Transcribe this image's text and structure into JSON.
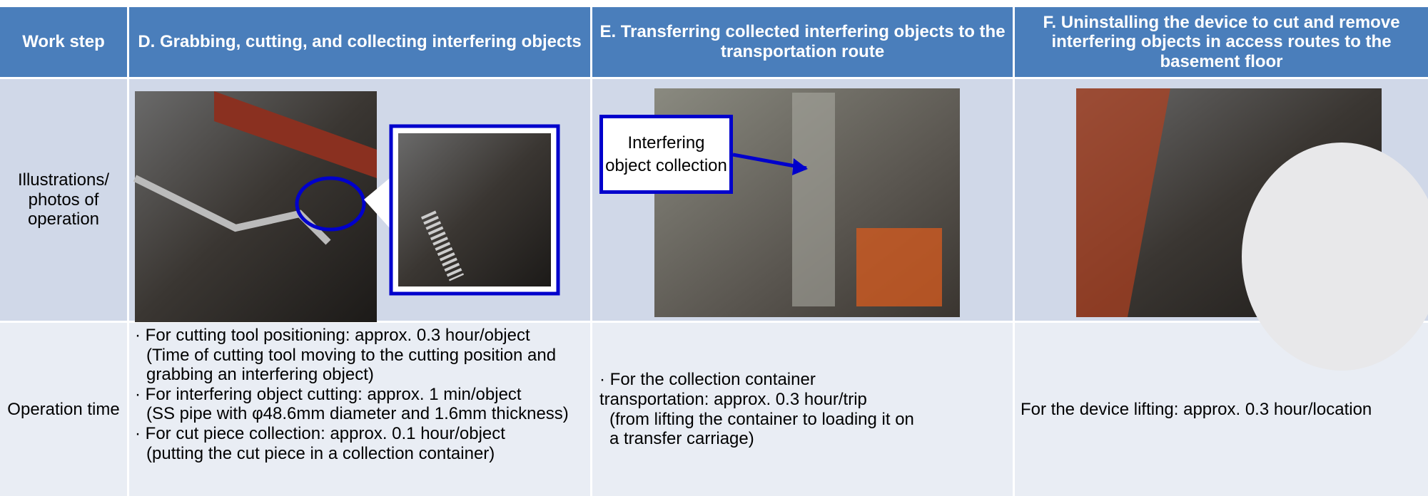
{
  "table": {
    "header": [
      "Work step",
      "D. Grabbing, cutting, and collecting interfering objects",
      "E. Transferring collected interfering objects to the transportation route",
      "F. Uninstalling the device to cut and remove interfering objects in access routes to the basement floor"
    ],
    "rows": [
      {
        "label": "Illustrations/ photos of operation",
        "callout": "Interfering object collection"
      },
      {
        "label": "Operation time",
        "d": [
          {
            "text": "· For cutting tool positioning: approx. 0.3 hour/object",
            "note": "(Time of cutting tool moving to the cutting position and grabbing an interfering object)"
          },
          {
            "text": "· For interfering object cutting: approx. 1 min/object",
            "note": "(SS pipe with φ48.6mm diameter and 1.6mm thickness)"
          },
          {
            "text": "· For cut piece collection: approx. 0.1 hour/object",
            "note": "(putting the cut piece in a collection container)"
          }
        ],
        "e": {
          "text": "· For the collection container transportation: approx. 0.3 hour/trip",
          "note": "(from lifting the container to loading it on a transfer carriage)"
        },
        "f": "For the device lifting: approx. 0.3 hour/location"
      }
    ]
  }
}
